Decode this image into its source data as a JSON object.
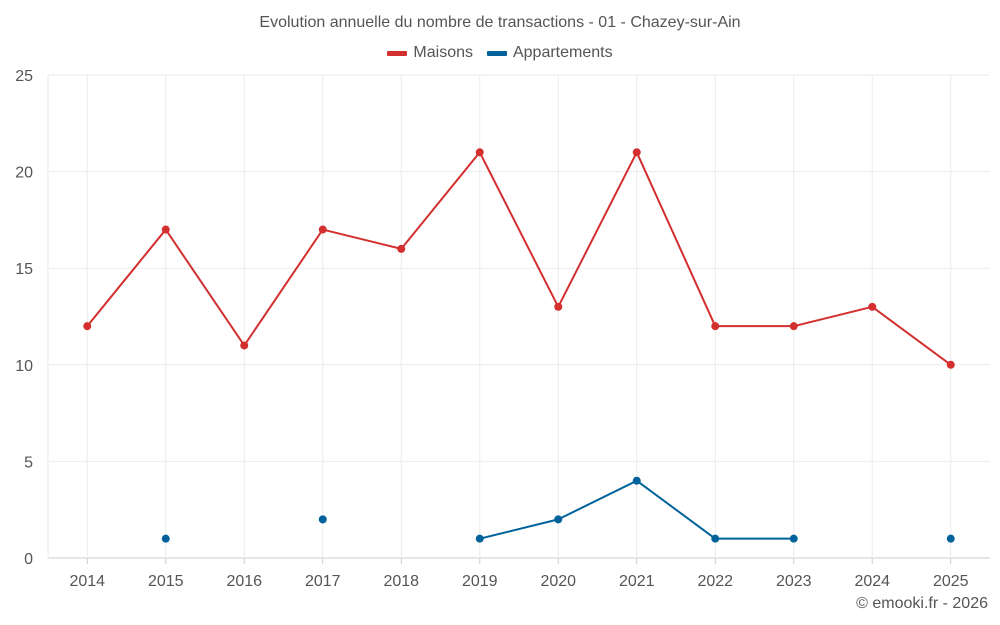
{
  "chart_data": {
    "type": "line",
    "title": "Evolution annuelle du nombre de transactions - 01 - Chazey-sur-Ain",
    "categories": [
      "2014",
      "2015",
      "2016",
      "2017",
      "2018",
      "2019",
      "2020",
      "2021",
      "2022",
      "2023",
      "2024",
      "2025"
    ],
    "series": [
      {
        "name": "Maisons",
        "color": "#d32f2f",
        "values": [
          12,
          17,
          11,
          17,
          16,
          21,
          13,
          21,
          12,
          12,
          13,
          10
        ]
      },
      {
        "name": "Appartements",
        "color": "#00629b",
        "values": [
          null,
          1,
          null,
          2,
          null,
          1,
          2,
          4,
          1,
          1,
          null,
          1
        ]
      }
    ],
    "ylim": [
      0,
      25
    ],
    "yticks": [
      0,
      5,
      10,
      15,
      20,
      25
    ],
    "xlabel": "",
    "ylabel": "",
    "grid": true,
    "legend_position": "top-center"
  },
  "credit": "© emooki.fr - 2026"
}
